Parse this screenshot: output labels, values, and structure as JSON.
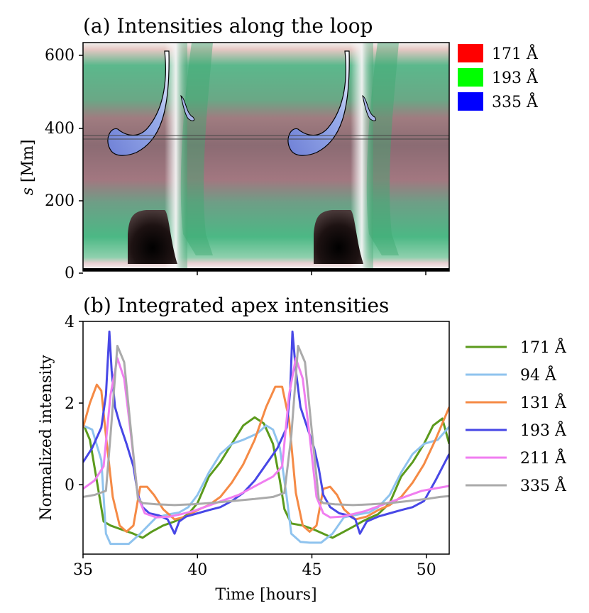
{
  "panel_a": {
    "title": "(a) Intensities along the loop",
    "ylabel_italic": "s",
    "ylabel_rest": " [Mm]",
    "yticks": [
      "0",
      "200",
      "400",
      "600"
    ],
    "legend": [
      {
        "label": "171 Å",
        "color": "#ff0000"
      },
      {
        "label": "193 Å",
        "color": "#00ff00"
      },
      {
        "label": "335 Å",
        "color": "#0000ff"
      }
    ]
  },
  "panel_b": {
    "title": "(b) Integrated apex intensities",
    "ylabel": "Normalized intensity",
    "xlabel": "Time [hours]",
    "yticks": [
      "0",
      "2",
      "4"
    ],
    "xticks": [
      "35",
      "40",
      "45",
      "50"
    ]
  },
  "chart_data": [
    {
      "type": "heatmap",
      "title": "(a) Intensities along the loop",
      "xlabel": "",
      "ylabel": "s [Mm]",
      "xlim": [
        35,
        51
      ],
      "ylim": [
        0,
        620
      ],
      "xticks": [
        35,
        40,
        45,
        50
      ],
      "yticks": [
        0,
        200,
        400,
        600
      ],
      "channels": [
        {
          "name": "171 Å",
          "color": "#ff0000"
        },
        {
          "name": "193 Å",
          "color": "#00ff00"
        },
        {
          "name": "335 Å",
          "color": "#0000ff"
        }
      ],
      "reference_lines_s": [
        370,
        380
      ],
      "period_hours": 7.9
    },
    {
      "type": "line",
      "title": "(b) Integrated apex intensities",
      "xlabel": "Time [hours]",
      "ylabel": "Normalized intensity",
      "xlim": [
        35,
        51
      ],
      "ylim": [
        -1.7,
        4
      ],
      "xticks": [
        35,
        40,
        45,
        50
      ],
      "yticks": [
        0,
        2,
        4
      ],
      "series": [
        {
          "name": "171 Å",
          "color": "#5b9a1c",
          "x": [
            35.0,
            35.3,
            35.6,
            35.9,
            36.2,
            36.7,
            37.2,
            37.6,
            38.0,
            38.5,
            39.0,
            39.3,
            39.6,
            40.0,
            40.5,
            41.0,
            41.5,
            42.0,
            42.5,
            42.9,
            43.3,
            43.6,
            43.8,
            44.1,
            44.6,
            45.1,
            45.5,
            45.9,
            46.4,
            46.9,
            47.2,
            47.5,
            47.9,
            48.4,
            48.9,
            49.4,
            49.9,
            50.3,
            50.7,
            51.0
          ],
          "y": [
            1.5,
            1.1,
            0.1,
            -0.9,
            -1.0,
            -1.1,
            -1.2,
            -1.3,
            -1.15,
            -1.0,
            -0.9,
            -0.82,
            -0.72,
            -0.45,
            0.2,
            0.55,
            1.0,
            1.45,
            1.65,
            1.5,
            1.0,
            0.1,
            -0.6,
            -0.95,
            -1.0,
            -1.1,
            -1.2,
            -1.3,
            -1.15,
            -1.0,
            -0.9,
            -0.82,
            -0.72,
            -0.45,
            0.2,
            0.55,
            1.0,
            1.45,
            1.62,
            1.0
          ]
        },
        {
          "name": "94 Å",
          "color": "#8fc3ee",
          "x": [
            35.0,
            35.4,
            35.8,
            36.0,
            36.2,
            36.6,
            37.0,
            37.5,
            38.2,
            38.8,
            39.2,
            39.6,
            40.0,
            40.5,
            41.0,
            41.5,
            42.0,
            42.6,
            43.0,
            43.3,
            43.6,
            43.9,
            44.1,
            44.5,
            44.9,
            45.4,
            45.9,
            46.4,
            47.1,
            47.5,
            47.9,
            48.4,
            48.9,
            49.4,
            49.9,
            50.5,
            51.0
          ],
          "y": [
            1.45,
            1.35,
            0.6,
            -1.2,
            -1.45,
            -1.45,
            -1.45,
            -1.2,
            -0.8,
            -0.72,
            -0.68,
            -0.55,
            -0.25,
            0.3,
            0.75,
            1.0,
            1.1,
            1.25,
            1.45,
            1.35,
            0.9,
            -0.3,
            -1.2,
            -1.4,
            -1.42,
            -1.42,
            -1.2,
            -0.8,
            -0.72,
            -0.68,
            -0.55,
            -0.25,
            0.3,
            0.75,
            1.0,
            1.1,
            1.42
          ]
        },
        {
          "name": "131 Å",
          "color": "#f58a45",
          "x": [
            35.0,
            35.3,
            35.6,
            35.8,
            36.0,
            36.3,
            36.6,
            36.9,
            37.2,
            37.5,
            37.8,
            38.1,
            38.5,
            39.0,
            39.5,
            40.0,
            40.5,
            41.0,
            41.5,
            42.0,
            42.5,
            43.0,
            43.4,
            43.7,
            44.0,
            44.3,
            44.6,
            44.9,
            45.2,
            45.5,
            45.8,
            46.1,
            46.4,
            46.9,
            47.4,
            47.9,
            48.4,
            48.9,
            49.4,
            49.9,
            50.4,
            51.0
          ],
          "y": [
            1.4,
            2.0,
            2.45,
            2.3,
            1.2,
            -0.3,
            -1.0,
            -1.15,
            -1.0,
            -0.05,
            -0.05,
            -0.25,
            -0.6,
            -0.85,
            -0.78,
            -0.62,
            -0.5,
            -0.3,
            0.05,
            0.5,
            1.1,
            1.9,
            2.4,
            2.4,
            1.6,
            -0.2,
            -1.0,
            -1.15,
            -1.0,
            -0.1,
            -0.05,
            -0.25,
            -0.6,
            -0.85,
            -0.78,
            -0.62,
            -0.5,
            -0.3,
            0.05,
            0.5,
            1.1,
            1.9
          ]
        },
        {
          "name": "193 Å",
          "color": "#4747e6",
          "x": [
            35.0,
            35.4,
            35.8,
            36.0,
            36.15,
            36.25,
            36.4,
            36.6,
            36.9,
            37.2,
            37.4,
            37.6,
            37.9,
            38.3,
            38.7,
            39.0,
            39.2,
            39.5,
            40.0,
            40.5,
            41.0,
            41.5,
            42.0,
            42.5,
            43.0,
            43.5,
            43.9,
            44.05,
            44.15,
            44.3,
            44.5,
            44.8,
            45.1,
            45.3,
            45.5,
            45.8,
            46.2,
            46.6,
            46.9,
            47.1,
            47.4,
            47.9,
            48.4,
            48.9,
            49.4,
            49.9,
            50.4,
            51.0
          ],
          "y": [
            0.55,
            0.9,
            1.4,
            2.2,
            3.75,
            2.8,
            1.9,
            1.5,
            1.0,
            0.45,
            -0.25,
            -0.55,
            -0.7,
            -0.75,
            -0.85,
            -1.2,
            -0.9,
            -0.78,
            -0.7,
            -0.62,
            -0.55,
            -0.4,
            -0.2,
            0.1,
            0.5,
            0.9,
            1.4,
            2.3,
            3.75,
            2.8,
            1.9,
            1.4,
            0.9,
            0.4,
            -0.25,
            -0.55,
            -0.7,
            -0.75,
            -0.85,
            -1.2,
            -0.9,
            -0.78,
            -0.7,
            -0.62,
            -0.55,
            -0.4,
            0.1,
            0.75
          ]
        },
        {
          "name": "211 Å",
          "color": "#f07ef0",
          "x": [
            35.0,
            35.5,
            35.9,
            36.2,
            36.5,
            36.8,
            37.1,
            37.4,
            37.7,
            38.2,
            38.8,
            39.3,
            39.8,
            40.3,
            40.8,
            41.3,
            41.8,
            42.3,
            42.8,
            43.3,
            43.7,
            44.0,
            44.3,
            44.6,
            44.9,
            45.2,
            45.5,
            45.8,
            46.3,
            46.8,
            47.3,
            47.8,
            48.3,
            48.8,
            49.3,
            49.8,
            50.3,
            50.8,
            51.0
          ],
          "y": [
            -0.1,
            0.1,
            0.45,
            2.2,
            3.1,
            2.6,
            1.2,
            -0.3,
            -0.7,
            -0.8,
            -0.78,
            -0.72,
            -0.65,
            -0.55,
            -0.45,
            -0.35,
            -0.25,
            -0.1,
            0.05,
            0.2,
            0.45,
            2.2,
            3.1,
            2.6,
            1.2,
            -0.3,
            -0.7,
            -0.8,
            -0.78,
            -0.72,
            -0.65,
            -0.55,
            -0.45,
            -0.35,
            -0.25,
            -0.15,
            -0.1,
            -0.05,
            -0.03
          ]
        },
        {
          "name": "335 Å",
          "color": "#aaaaaa",
          "x": [
            35.0,
            35.5,
            36.0,
            36.2,
            36.5,
            36.8,
            37.1,
            37.4,
            37.6,
            38.2,
            39.0,
            39.8,
            40.5,
            41.5,
            42.5,
            43.3,
            43.8,
            44.1,
            44.4,
            44.7,
            45.0,
            45.3,
            45.5,
            46.0,
            46.8,
            47.6,
            48.4,
            49.2,
            50.0,
            50.6,
            51.0
          ],
          "y": [
            -0.3,
            -0.25,
            -0.15,
            1.2,
            3.4,
            3.0,
            1.3,
            -0.35,
            -0.45,
            -0.48,
            -0.5,
            -0.48,
            -0.45,
            -0.4,
            -0.35,
            -0.3,
            -0.2,
            1.2,
            3.4,
            3.0,
            1.3,
            -0.35,
            -0.45,
            -0.48,
            -0.5,
            -0.48,
            -0.45,
            -0.4,
            -0.35,
            -0.3,
            -0.28
          ]
        }
      ]
    }
  ]
}
